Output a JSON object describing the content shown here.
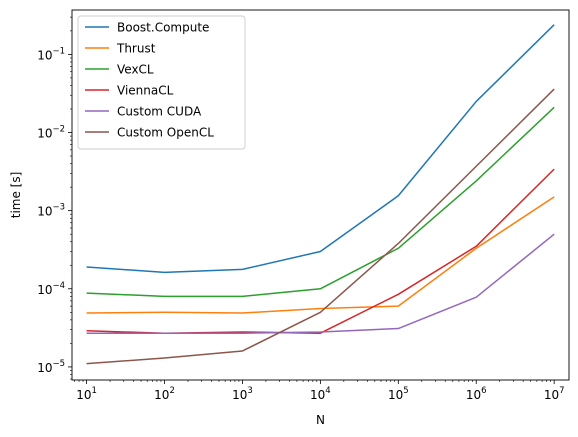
{
  "chart_data": {
    "type": "line",
    "xlabel": "N",
    "ylabel": "time [s]",
    "xscale": "log",
    "yscale": "log",
    "xlim": [
      6.5,
      15500000
    ],
    "ylim": [
      6.8e-06,
      0.37
    ],
    "legend_position": "top-left",
    "grid": false,
    "x": [
      10,
      100,
      1000,
      10000,
      100000,
      1000000,
      10000000
    ],
    "x_ticks": [
      {
        "value": 10,
        "base": "10",
        "exp": "1"
      },
      {
        "value": 100,
        "base": "10",
        "exp": "2"
      },
      {
        "value": 1000,
        "base": "10",
        "exp": "3"
      },
      {
        "value": 10000,
        "base": "10",
        "exp": "4"
      },
      {
        "value": 100000,
        "base": "10",
        "exp": "5"
      },
      {
        "value": 1000000,
        "base": "10",
        "exp": "6"
      },
      {
        "value": 10000000,
        "base": "10",
        "exp": "7"
      }
    ],
    "y_ticks": [
      {
        "value": 1e-05,
        "base": "10",
        "exp": "−5"
      },
      {
        "value": 0.0001,
        "base": "10",
        "exp": "−4"
      },
      {
        "value": 0.001,
        "base": "10",
        "exp": "−3"
      },
      {
        "value": 0.01,
        "base": "10",
        "exp": "−2"
      },
      {
        "value": 0.1,
        "base": "10",
        "exp": "−1"
      }
    ],
    "series": [
      {
        "name": "Boost.Compute",
        "color": "#1f77b4",
        "values": [
          0.00019,
          0.000162,
          0.000177,
          0.0003,
          0.00155,
          0.025,
          0.24
        ]
      },
      {
        "name": "Thrust",
        "color": "#ff7f0e",
        "values": [
          4.9e-05,
          5e-05,
          4.9e-05,
          5.6e-05,
          6e-05,
          0.00033,
          0.0015
        ]
      },
      {
        "name": "VexCL",
        "color": "#2ca02c",
        "values": [
          8.8e-05,
          8e-05,
          8e-05,
          0.0001,
          0.00033,
          0.0024,
          0.021
        ]
      },
      {
        "name": "ViennaCL",
        "color": "#d62728",
        "values": [
          2.9e-05,
          2.7e-05,
          2.8e-05,
          2.7e-05,
          8.5e-05,
          0.00035,
          0.0034
        ]
      },
      {
        "name": "Custom CUDA",
        "color": "#9467bd",
        "values": [
          2.7e-05,
          2.7e-05,
          2.7e-05,
          2.8e-05,
          3.1e-05,
          7.8e-05,
          0.0005
        ]
      },
      {
        "name": "Custom OpenCL",
        "color": "#8c564b",
        "values": [
          1.1e-05,
          1.3e-05,
          1.6e-05,
          5e-05,
          0.00038,
          0.0037,
          0.036
        ]
      }
    ]
  }
}
